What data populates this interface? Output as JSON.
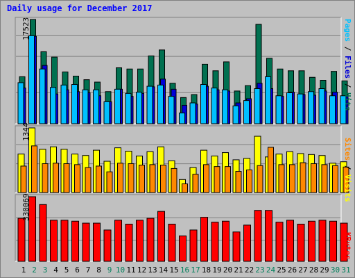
{
  "title": "Daily usage for December 2017",
  "colors": {
    "hits": "#007050",
    "files": "#0000d8",
    "pages": "#00c0ff",
    "visits": "#ffff00",
    "sites": "#ff8800",
    "kbytes": "#ff0000",
    "weekend": "#00805c",
    "weekday": "#000000",
    "panel_bg": "#c0c0c0"
  },
  "legends": {
    "top": [
      "Pages",
      "Files",
      "Hits"
    ],
    "middle": [
      "Sites",
      "Visits"
    ],
    "bottom": [
      "KBytes"
    ]
  },
  "chart_data": [
    {
      "type": "bar",
      "panel": "hits-files-pages",
      "ymax_label": "17523",
      "ylim": [
        0,
        17523
      ],
      "categories": [
        "1",
        "2",
        "3",
        "4",
        "5",
        "6",
        "7",
        "8",
        "9",
        "10",
        "11",
        "12",
        "13",
        "14",
        "15",
        "16",
        "17",
        "18",
        "19",
        "20",
        "21",
        "22",
        "23",
        "24",
        "25",
        "26",
        "27",
        "28",
        "29",
        "30",
        "31"
      ],
      "weekend": [
        false,
        true,
        true,
        false,
        false,
        false,
        false,
        false,
        true,
        true,
        false,
        false,
        false,
        false,
        false,
        true,
        true,
        false,
        false,
        false,
        false,
        false,
        true,
        true,
        false,
        false,
        false,
        false,
        false,
        true,
        true
      ],
      "series": [
        {
          "name": "Hits",
          "values": [
            7900,
            17523,
            12100,
            11200,
            8700,
            8000,
            7400,
            7000,
            5400,
            9400,
            9200,
            9200,
            11400,
            12400,
            6800,
            4400,
            4900,
            10000,
            8900,
            10400,
            5500,
            6400,
            16700,
            11000,
            9200,
            8900,
            8900,
            7800,
            7300,
            8800,
            7200
          ]
        },
        {
          "name": "Files",
          "values": [
            6000,
            14700,
            9800,
            5000,
            5700,
            5400,
            5200,
            4700,
            3700,
            5800,
            4600,
            5100,
            6200,
            7500,
            5800,
            3100,
            3300,
            6300,
            5700,
            5500,
            3500,
            4200,
            6800,
            5900,
            4600,
            5300,
            4900,
            4800,
            5500,
            5300,
            4600
          ]
        },
        {
          "name": "Pages",
          "values": [
            6900,
            14800,
            9200,
            6100,
            6500,
            6600,
            5700,
            5700,
            3700,
            5800,
            5100,
            5300,
            6300,
            6500,
            4600,
            1800,
            3500,
            6600,
            6000,
            5700,
            3000,
            3900,
            5900,
            7900,
            4700,
            5200,
            5000,
            5400,
            5900,
            4700,
            4700
          ]
        }
      ]
    },
    {
      "type": "bar",
      "panel": "visits-sites",
      "ymax_label": "1344",
      "ylim": [
        0,
        1344
      ],
      "categories": [
        "1",
        "2",
        "3",
        "4",
        "5",
        "6",
        "7",
        "8",
        "9",
        "10",
        "11",
        "12",
        "13",
        "14",
        "15",
        "16",
        "17",
        "18",
        "19",
        "20",
        "21",
        "22",
        "23",
        "24",
        "25",
        "26",
        "27",
        "28",
        "29",
        "30",
        "31"
      ],
      "series": [
        {
          "name": "Visits",
          "values": [
            800,
            1344,
            900,
            950,
            900,
            800,
            770,
            880,
            650,
            930,
            860,
            760,
            850,
            950,
            660,
            270,
            520,
            880,
            760,
            830,
            680,
            710,
            1170,
            740,
            800,
            850,
            810,
            790,
            770,
            610,
            640
          ]
        },
        {
          "name": "Sites",
          "values": [
            550,
            970,
            600,
            610,
            600,
            580,
            520,
            550,
            430,
            610,
            600,
            570,
            580,
            570,
            500,
            180,
            380,
            580,
            540,
            540,
            440,
            470,
            560,
            940,
            580,
            580,
            620,
            600,
            580,
            560,
            530
          ]
        }
      ]
    },
    {
      "type": "bar",
      "panel": "kbytes",
      "ymax_label": "330069",
      "ylim": [
        0,
        330069
      ],
      "categories": [
        "1",
        "2",
        "3",
        "4",
        "5",
        "6",
        "7",
        "8",
        "9",
        "10",
        "11",
        "12",
        "13",
        "14",
        "15",
        "16",
        "17",
        "18",
        "19",
        "20",
        "21",
        "22",
        "23",
        "24",
        "25",
        "26",
        "27",
        "28",
        "29",
        "30",
        "31"
      ],
      "series": [
        {
          "name": "KBytes",
          "values": [
            220000,
            330069,
            290000,
            210000,
            210000,
            205000,
            195000,
            195000,
            160000,
            210000,
            190000,
            210000,
            220000,
            255000,
            190000,
            130000,
            160000,
            225000,
            200000,
            205000,
            150000,
            185000,
            260000,
            260000,
            200000,
            210000,
            190000,
            205000,
            210000,
            205000,
            195000
          ]
        }
      ]
    }
  ]
}
